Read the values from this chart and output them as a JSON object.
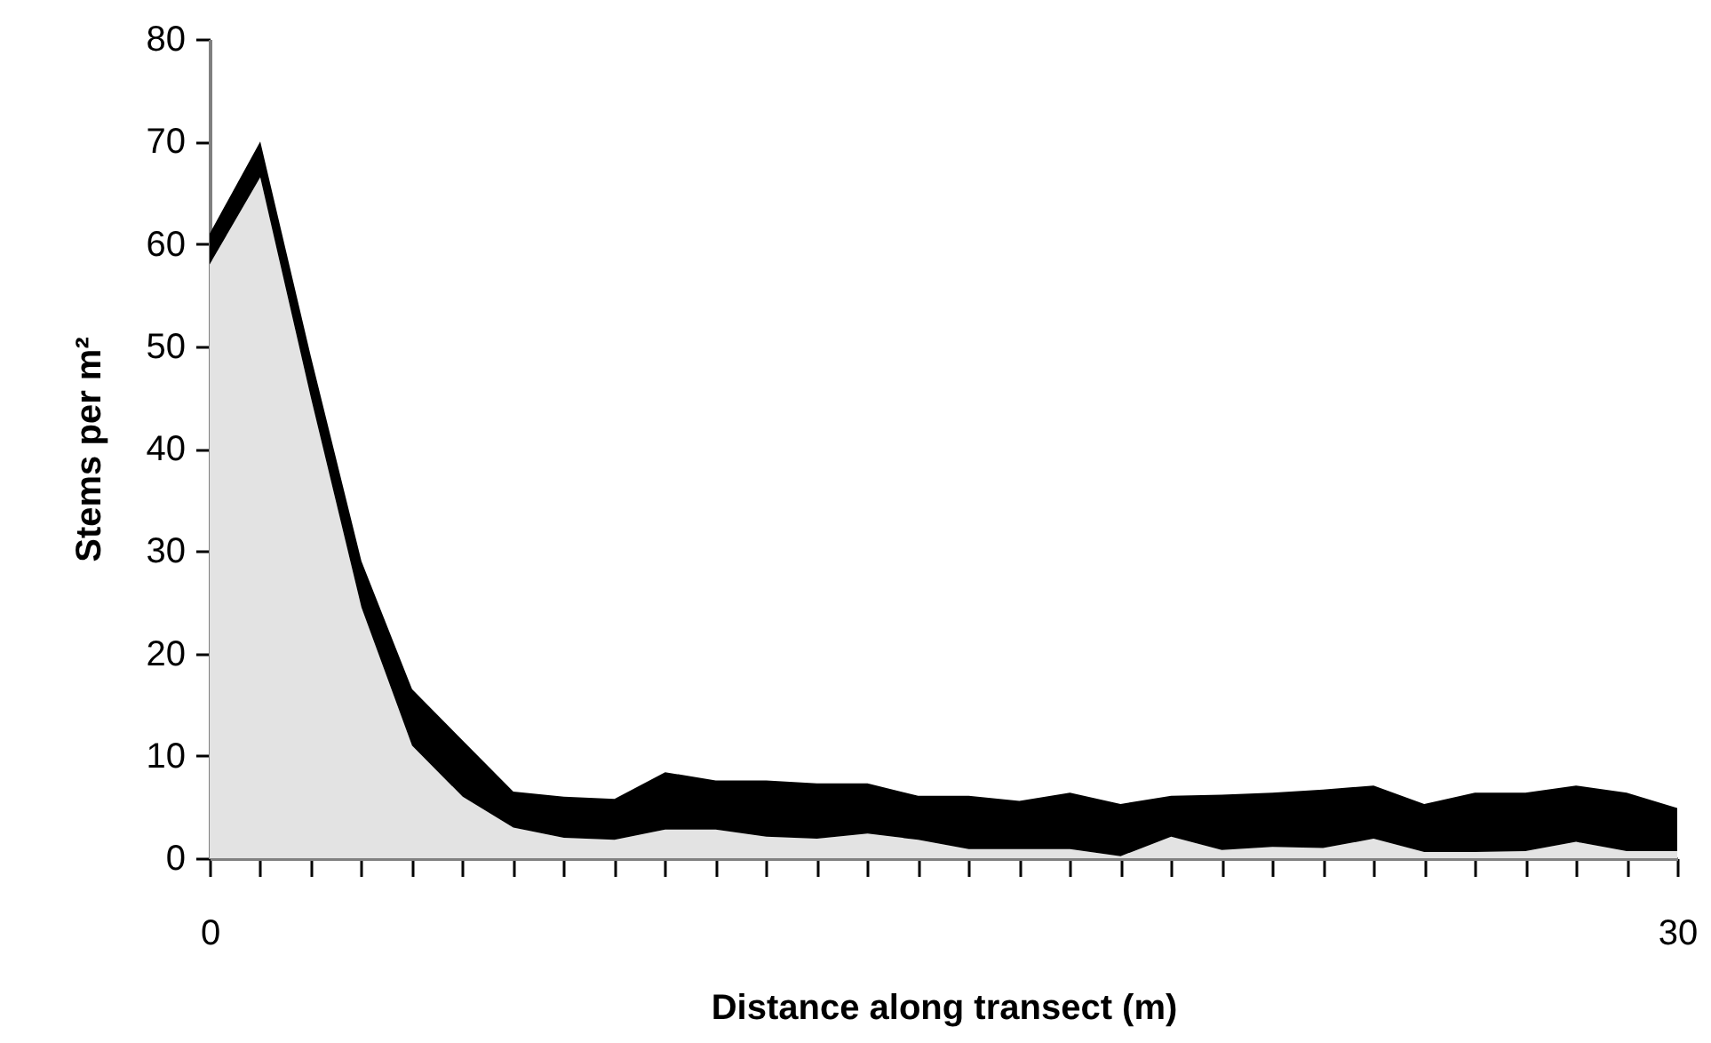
{
  "chart_data": {
    "type": "area",
    "stacked": true,
    "xlabel": "Distance along transect (m)",
    "ylabel": "Stems per m²",
    "categories": [
      "0",
      null,
      null,
      null,
      null,
      null,
      null,
      null,
      null,
      null,
      null,
      null,
      null,
      null,
      null,
      null,
      null,
      null,
      null,
      null,
      null,
      null,
      null,
      null,
      null,
      null,
      null,
      null,
      null,
      "30"
    ],
    "series": [
      {
        "color": "#e3e3e3",
        "values": [
          58,
          66.5,
          45,
          24.5,
          11,
          6,
          3,
          2,
          1.8,
          2.8,
          2.8,
          2.1,
          1.9,
          2.4,
          1.8,
          0.9,
          0.9,
          0.9,
          0.2,
          2.1,
          0.8,
          1.1,
          1,
          1.9,
          0.6,
          0.6,
          0.7,
          1.6,
          0.7,
          0.7
        ]
      },
      {
        "color": "#000000",
        "values": [
          3,
          3.5,
          4,
          4.5,
          5.5,
          5.5,
          3.5,
          4,
          4,
          5.6,
          4.8,
          5.5,
          5.4,
          4.9,
          4.3,
          5.2,
          4.7,
          5.5,
          5.1,
          4,
          5.4,
          5.3,
          5.7,
          5.2,
          4.7,
          5.8,
          5.7,
          5.5,
          5.7,
          4.2
        ]
      }
    ],
    "ylim": [
      0,
      80
    ],
    "yticks": [
      0,
      10,
      20,
      30,
      40,
      50,
      60,
      70,
      80
    ],
    "grid": false,
    "legend": false
  }
}
